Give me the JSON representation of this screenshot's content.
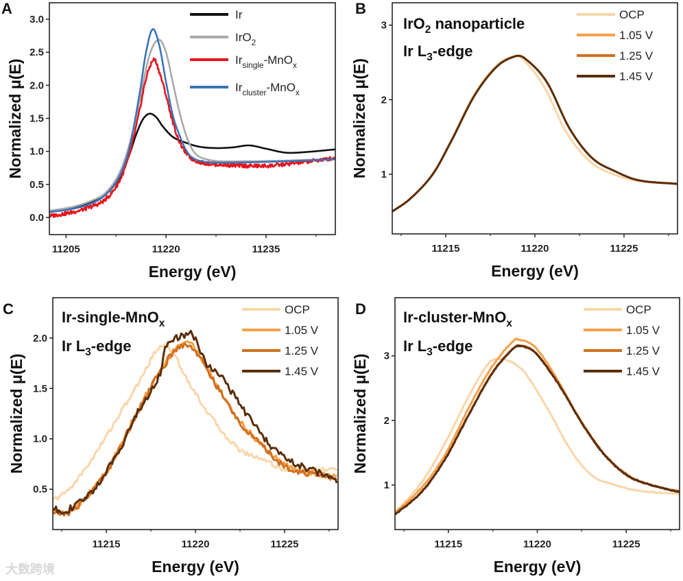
{
  "watermark": "大数跨境",
  "chart_data": [
    {
      "panel": "A",
      "type": "line",
      "xlabel": "Energy (eV)",
      "ylabel": "Normalized μ(E)",
      "xlim": [
        11202.5,
        11245.4
      ],
      "ylim": [
        -0.26,
        3.25
      ],
      "xticks": [
        11205,
        11220,
        11235
      ],
      "xminor": [
        11212.5,
        11227.5,
        11242.5
      ],
      "yticks": [
        0,
        0.5,
        1.0,
        1.5,
        2.0,
        2.5,
        3.0
      ],
      "ytick_labels": [
        "0.0",
        "0.5",
        "1.0",
        "1.5",
        "2.0",
        "2.5",
        "3.0"
      ],
      "legend_position": "top-right",
      "annotations": [],
      "series": [
        {
          "name": [
            {
              "t": "Ir"
            }
          ],
          "color": "#111111",
          "noise": 0,
          "x": [
            11202.5,
            11206,
            11209,
            11211,
            11213,
            11214.5,
            11215.5,
            11216.5,
            11217.5,
            11218.5,
            11219.5,
            11221,
            11223,
            11225,
            11227.5,
            11230,
            11232.5,
            11235,
            11238,
            11241,
            11245.4
          ],
          "y": [
            0.09,
            0.15,
            0.24,
            0.35,
            0.6,
            0.95,
            1.25,
            1.48,
            1.57,
            1.52,
            1.38,
            1.22,
            1.13,
            1.07,
            1.05,
            1.06,
            1.09,
            1.04,
            0.98,
            0.99,
            1.03
          ]
        },
        {
          "name": [
            {
              "t": "IrO"
            },
            {
              "t": "2",
              "sub": true
            }
          ],
          "color": "#a9a9a9",
          "noise": 0,
          "x": [
            11202.5,
            11206,
            11209,
            11211,
            11213,
            11214.5,
            11216,
            11217.5,
            11218.9,
            11220,
            11221,
            11222,
            11223,
            11224,
            11225,
            11226.5,
            11228,
            11232,
            11238,
            11245.4
          ],
          "y": [
            0.1,
            0.16,
            0.26,
            0.38,
            0.67,
            1.1,
            1.75,
            2.45,
            2.69,
            2.5,
            2.05,
            1.6,
            1.25,
            1.02,
            0.92,
            0.87,
            0.85,
            0.85,
            0.86,
            0.89
          ]
        },
        {
          "name": [
            {
              "t": "Ir"
            },
            {
              "t": "single",
              "sub": true
            },
            {
              "t": "-MnO"
            },
            {
              "t": "x",
              "sub": true
            }
          ],
          "color": "#e8141c",
          "noise": 0.03,
          "x": [
            11202.5,
            11206,
            11209,
            11211,
            11213,
            11214.5,
            11216,
            11217,
            11218.2,
            11219,
            11220,
            11221,
            11222,
            11223,
            11224,
            11226,
            11230,
            11235,
            11240,
            11245.4
          ],
          "y": [
            0.02,
            0.08,
            0.17,
            0.28,
            0.55,
            0.95,
            1.6,
            2.1,
            2.39,
            2.2,
            1.85,
            1.45,
            1.15,
            0.98,
            0.88,
            0.82,
            0.79,
            0.78,
            0.83,
            0.9
          ]
        },
        {
          "name": [
            {
              "t": "Ir"
            },
            {
              "t": "cluster",
              "sub": true
            },
            {
              "t": "-MnO"
            },
            {
              "t": "x",
              "sub": true
            }
          ],
          "color": "#3a74b5",
          "noise": 0,
          "x": [
            11202.5,
            11206,
            11209,
            11211,
            11213,
            11214.5,
            11216,
            11217,
            11218,
            11219,
            11220,
            11221,
            11222,
            11223,
            11224,
            11226,
            11230,
            11238,
            11245.4
          ],
          "y": [
            0.08,
            0.13,
            0.22,
            0.35,
            0.62,
            1.05,
            1.85,
            2.5,
            2.85,
            2.6,
            2.05,
            1.55,
            1.25,
            1.02,
            0.9,
            0.84,
            0.83,
            0.85,
            0.88
          ]
        }
      ]
    },
    {
      "panel": "B",
      "type": "line",
      "xlabel": "Energy (eV)",
      "ylabel": "Normalized μ(E)",
      "xlim": [
        11212,
        11228
      ],
      "ylim": [
        0.2,
        3.3
      ],
      "xticks": [
        11215,
        11220,
        11225
      ],
      "xminor": [
        11212.5,
        11217.5,
        11222.5,
        11227.5
      ],
      "yticks": [
        1,
        2,
        3
      ],
      "ytick_labels": [
        "1",
        "2",
        "3"
      ],
      "legend_position": "top-right",
      "annotations": [
        [
          {
            "t": "IrO"
          },
          {
            "t": "2",
            "sub": true
          },
          {
            "t": " nanoparticle"
          }
        ],
        [
          {
            "t": "Ir L"
          },
          {
            "t": "3",
            "sub": true
          },
          {
            "t": "-edge"
          }
        ]
      ],
      "series": [
        {
          "name": [
            {
              "t": "OCP"
            }
          ],
          "color": "#f9d6aa",
          "noise": 0,
          "x": [
            11212,
            11213,
            11214.27,
            11215.3,
            11216.6,
            11217.85,
            11218.8,
            11219.3,
            11220.5,
            11221.8,
            11223.1,
            11224.4,
            11225.8,
            11228
          ],
          "y": [
            0.5,
            0.67,
            1.0,
            1.45,
            2.07,
            2.46,
            2.58,
            2.55,
            2.18,
            1.55,
            1.17,
            1.0,
            0.91,
            0.87
          ]
        },
        {
          "name": [
            {
              "t": "1.05 V"
            }
          ],
          "color": "#f5a04a",
          "noise": 0,
          "x": [
            11212,
            11213,
            11214.27,
            11215.3,
            11216.6,
            11217.85,
            11218.87,
            11219.4,
            11220.66,
            11221.93,
            11223.2,
            11224.5,
            11225.8,
            11228
          ],
          "y": [
            0.5,
            0.67,
            1.0,
            1.44,
            2.05,
            2.44,
            2.58,
            2.56,
            2.24,
            1.62,
            1.22,
            1.04,
            0.92,
            0.87
          ]
        },
        {
          "name": [
            {
              "t": "1.25 V"
            }
          ],
          "color": "#d0701f",
          "noise": 0,
          "x": [
            11212,
            11213,
            11214.27,
            11215.3,
            11216.6,
            11217.85,
            11218.87,
            11219.4,
            11220.66,
            11221.93,
            11223.2,
            11224.5,
            11225.8,
            11228
          ],
          "y": [
            0.5,
            0.67,
            1.0,
            1.44,
            2.05,
            2.44,
            2.58,
            2.56,
            2.24,
            1.62,
            1.22,
            1.04,
            0.92,
            0.87
          ]
        },
        {
          "name": [
            {
              "t": "1.45 V"
            }
          ],
          "color": "#5a2e0c",
          "noise": 0,
          "x": [
            11212,
            11213,
            11214.27,
            11215.3,
            11216.6,
            11217.85,
            11218.87,
            11219.4,
            11220.66,
            11221.93,
            11223.2,
            11224.5,
            11225.8,
            11228
          ],
          "y": [
            0.5,
            0.67,
            1.0,
            1.44,
            2.05,
            2.44,
            2.58,
            2.56,
            2.24,
            1.62,
            1.22,
            1.04,
            0.92,
            0.87
          ]
        }
      ]
    },
    {
      "panel": "C",
      "type": "line",
      "xlabel": "Energy (eV)",
      "ylabel": "Normalized μ(E)",
      "xlim": [
        11212,
        11228
      ],
      "ylim": [
        0.1,
        2.4
      ],
      "xticks": [
        11215,
        11220,
        11225
      ],
      "xminor": [
        11212.5,
        11217.5,
        11222.5,
        11227.5
      ],
      "yticks": [
        0.5,
        1.0,
        1.5,
        2.0
      ],
      "ytick_labels": [
        "0.5",
        "1.0",
        "1.5",
        "2.0"
      ],
      "legend_position": "top-right",
      "annotations": [
        [
          {
            "t": "Ir-single-MnO"
          },
          {
            "t": "x",
            "sub": true
          }
        ],
        [
          {
            "t": "Ir L"
          },
          {
            "t": "3",
            "sub": true
          },
          {
            "t": "-edge"
          }
        ]
      ],
      "series": [
        {
          "name": [
            {
              "t": "OCP"
            }
          ],
          "color": "#f9d6aa",
          "noise": 0.025,
          "x": [
            11212,
            11212.9,
            11214.2,
            11215.45,
            11216.7,
            11217.75,
            11218.3,
            11218.8,
            11219.9,
            11221.2,
            11222.5,
            11223.8,
            11225.1,
            11228
          ],
          "y": [
            0.39,
            0.5,
            0.8,
            1.16,
            1.52,
            1.86,
            1.94,
            1.83,
            1.48,
            1.14,
            0.89,
            0.8,
            0.69,
            0.7
          ]
        },
        {
          "name": [
            {
              "t": "1.05 V"
            }
          ],
          "color": "#f5a04a",
          "noise": 0.03,
          "x": [
            11212,
            11212.9,
            11214.2,
            11215.45,
            11216.7,
            11218,
            11219,
            11219.55,
            11220.1,
            11221.2,
            11222.5,
            11223.8,
            11225.1,
            11228
          ],
          "y": [
            0.28,
            0.29,
            0.49,
            0.81,
            1.26,
            1.67,
            1.92,
            1.96,
            1.87,
            1.53,
            1.17,
            0.93,
            0.73,
            0.62
          ]
        },
        {
          "name": [
            {
              "t": "1.25 V"
            }
          ],
          "color": "#d0701f",
          "noise": 0.03,
          "x": [
            11212,
            11212.9,
            11214.2,
            11215.45,
            11216.7,
            11218,
            11219,
            11219.55,
            11220.1,
            11221.2,
            11222.5,
            11223.8,
            11225.1,
            11228
          ],
          "y": [
            0.27,
            0.27,
            0.48,
            0.8,
            1.25,
            1.66,
            1.9,
            1.93,
            1.85,
            1.52,
            1.16,
            0.92,
            0.72,
            0.6
          ]
        },
        {
          "name": [
            {
              "t": "1.45 V"
            }
          ],
          "color": "#5a2e0c",
          "noise": 0.035,
          "x": [
            11212,
            11212.9,
            11214.2,
            11215.45,
            11216.7,
            11218,
            11218.3,
            11219.3,
            11219.9,
            11220.6,
            11221.2,
            11222.5,
            11223.8,
            11225.1,
            11228
          ],
          "y": [
            0.3,
            0.3,
            0.48,
            0.8,
            1.24,
            1.64,
            1.9,
            2.02,
            2.02,
            1.74,
            1.68,
            1.34,
            1.02,
            0.8,
            0.59
          ]
        }
      ]
    },
    {
      "panel": "D",
      "type": "line",
      "xlabel": "Energy (eV)",
      "ylabel": "Normalized μ(E)",
      "xlim": [
        11212,
        11228
      ],
      "ylim": [
        0.31,
        3.9
      ],
      "xticks": [
        11215,
        11220,
        11225
      ],
      "xminor": [
        11212.5,
        11217.5,
        11222.5,
        11227.5
      ],
      "yticks": [
        1,
        2,
        3
      ],
      "ytick_labels": [
        "1",
        "2",
        "3"
      ],
      "legend_position": "top-right",
      "annotations": [
        [
          {
            "t": "Ir-cluster-MnO"
          },
          {
            "t": "x",
            "sub": true
          }
        ],
        [
          {
            "t": "Ir L"
          },
          {
            "t": "3",
            "sub": true
          },
          {
            "t": "-edge"
          }
        ]
      ],
      "series": [
        {
          "name": [
            {
              "t": "OCP"
            }
          ],
          "color": "#f9d6aa",
          "noise": 0.008,
          "x": [
            11212,
            11213.5,
            11214.8,
            11216.1,
            11217.25,
            11217.9,
            11218.5,
            11219.3,
            11220.6,
            11221.9,
            11223.1,
            11224.4,
            11225.7,
            11228
          ],
          "y": [
            0.57,
            1.04,
            1.64,
            2.35,
            2.88,
            2.95,
            2.91,
            2.74,
            2.17,
            1.53,
            1.14,
            1.0,
            0.91,
            0.86
          ]
        },
        {
          "name": [
            {
              "t": "1.05 V"
            }
          ],
          "color": "#f5a04a",
          "noise": 0.008,
          "x": [
            11212,
            11213.5,
            11214.8,
            11216.1,
            11217.4,
            11218.65,
            11219.0,
            11219.9,
            11221.2,
            11222.5,
            11223.8,
            11225.1,
            11226.4,
            11228
          ],
          "y": [
            0.57,
            0.96,
            1.46,
            2.17,
            2.81,
            3.23,
            3.25,
            3.13,
            2.6,
            1.96,
            1.46,
            1.14,
            1.0,
            0.89
          ]
        },
        {
          "name": [
            {
              "t": "1.25 V"
            }
          ],
          "color": "#d0701f",
          "noise": 0.008,
          "x": [
            11212,
            11213.5,
            11214.8,
            11216.1,
            11217.4,
            11218.65,
            11219.1,
            11219.9,
            11221.2,
            11222.5,
            11223.8,
            11225.1,
            11226.4,
            11228
          ],
          "y": [
            0.55,
            0.9,
            1.4,
            2.07,
            2.71,
            3.12,
            3.16,
            3.05,
            2.57,
            1.97,
            1.47,
            1.15,
            1.0,
            0.9
          ]
        },
        {
          "name": [
            {
              "t": "1.45 V"
            }
          ],
          "color": "#5a2e0c",
          "noise": 0.008,
          "x": [
            11212,
            11213.5,
            11214.8,
            11216.1,
            11217.4,
            11218.65,
            11219.1,
            11219.9,
            11221.2,
            11222.5,
            11223.8,
            11225.1,
            11226.4,
            11228
          ],
          "y": [
            0.54,
            0.89,
            1.39,
            2.06,
            2.7,
            3.11,
            3.15,
            3.04,
            2.56,
            1.96,
            1.46,
            1.14,
            1.0,
            0.89
          ]
        }
      ]
    }
  ]
}
